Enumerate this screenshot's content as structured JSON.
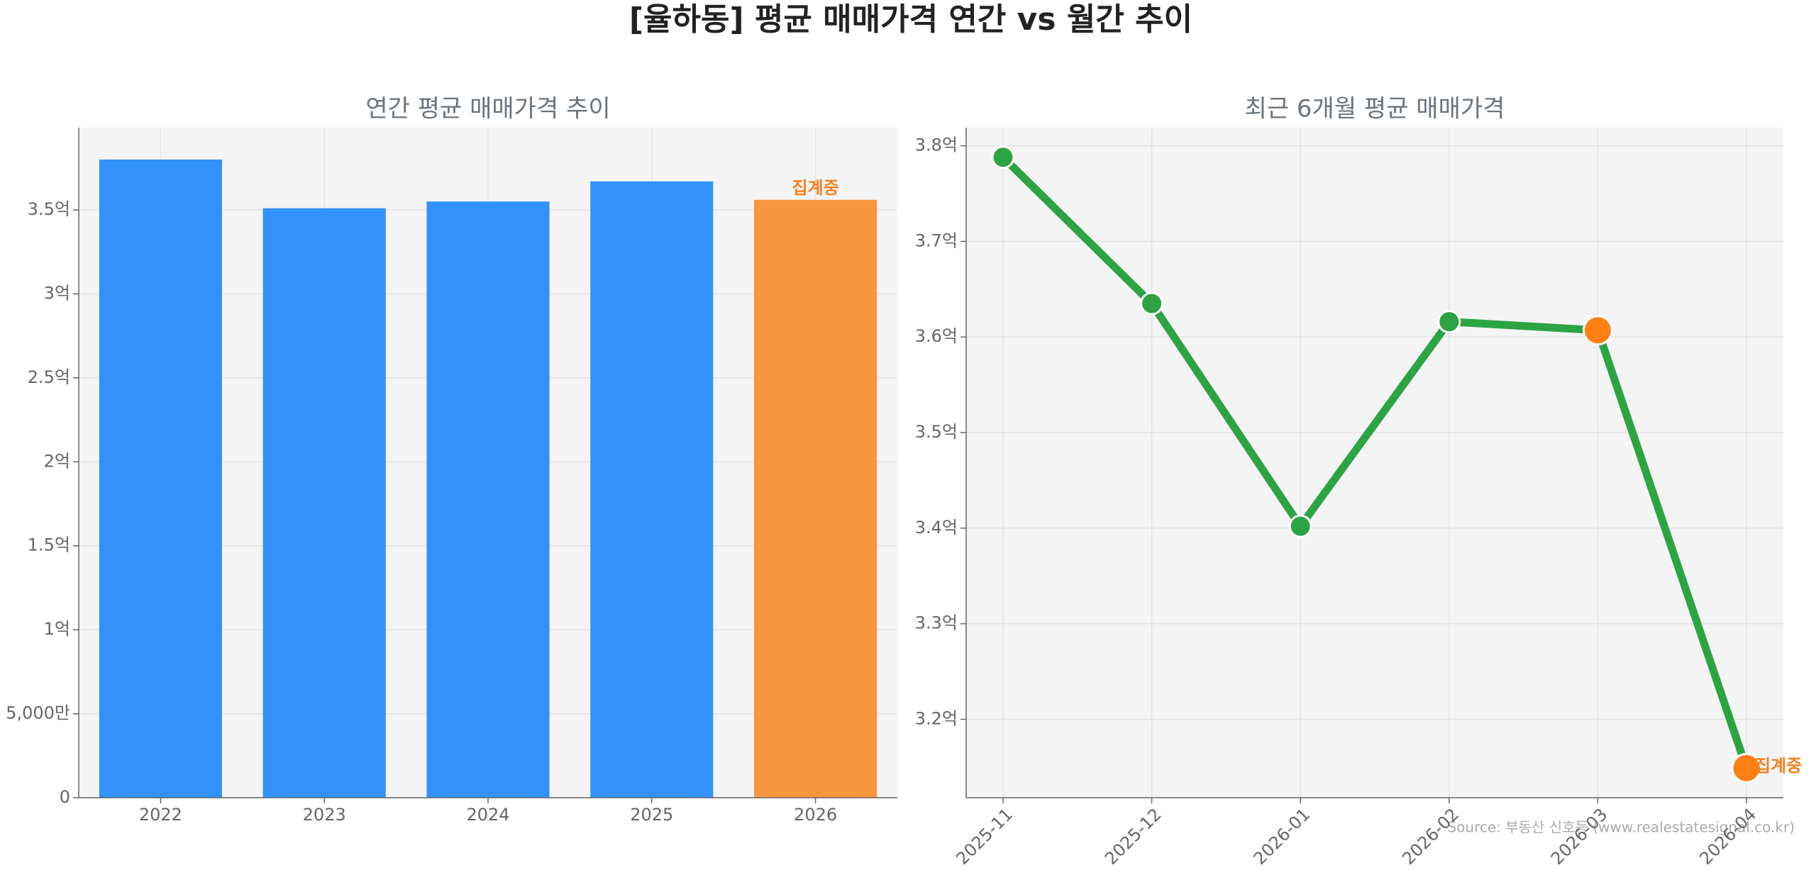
{
  "title": "[율하동] 평균 매매가격 연간 vs 월간 추이",
  "source": "Source: 부동산 신호등 (www.realestatesignal.co.kr)",
  "chart_data": [
    {
      "type": "bar",
      "title": "연간 평균 매매가격 추이",
      "categories": [
        "2022",
        "2023",
        "2024",
        "2025",
        "2026"
      ],
      "values": [
        380000000,
        351000000,
        355000000,
        367000000,
        356000000
      ],
      "colors": [
        "#3192fb",
        "#3192fb",
        "#3192fb",
        "#3192fb",
        "#f7963f"
      ],
      "ylim": [
        0,
        399000000
      ],
      "yticks": [
        0,
        {
          "value": 50000000,
          "label": "5,000만"
        },
        {
          "value": 100000000,
          "label": "1억"
        },
        {
          "value": 150000000,
          "label": "1.5억"
        },
        {
          "value": 200000000,
          "label": "2억"
        },
        {
          "value": 250000000,
          "label": "2.5억"
        },
        {
          "value": 300000000,
          "label": "3억"
        },
        {
          "value": 350000000,
          "label": "3.5억"
        }
      ],
      "grid": true,
      "annotations": [
        {
          "text": "집계중",
          "category": "2026",
          "color": "#f5801e"
        }
      ]
    },
    {
      "type": "line",
      "title": "최근 6개월 평균 매매가격",
      "categories": [
        "2025-11",
        "2025-12",
        "2026-01",
        "2026-02",
        "2026-03",
        "2026-04"
      ],
      "series": [
        {
          "color": "#2ca444",
          "values": [
            378800000,
            363500000,
            340200000,
            361600000,
            360700000,
            314900000
          ],
          "marker_colors": [
            "#2ca444",
            "#2ca444",
            "#2ca444",
            "#2ca444",
            "#fd7f13",
            "#fd7f13"
          ]
        }
      ],
      "ylim": [
        311800000,
        381900000
      ],
      "yticks": [
        {
          "value": 320000000,
          "label": "3.2억"
        },
        {
          "value": 330000000,
          "label": "3.3억"
        },
        {
          "value": 340000000,
          "label": "3.4억"
        },
        {
          "value": 350000000,
          "label": "3.5억"
        },
        {
          "value": 360000000,
          "label": "3.6억"
        },
        {
          "value": 370000000,
          "label": "3.7억"
        },
        {
          "value": 380000000,
          "label": "3.8억"
        }
      ],
      "grid": true,
      "annotations": [
        {
          "text": "집계중",
          "category": "2026-04",
          "color": "#f5801e"
        }
      ]
    }
  ]
}
